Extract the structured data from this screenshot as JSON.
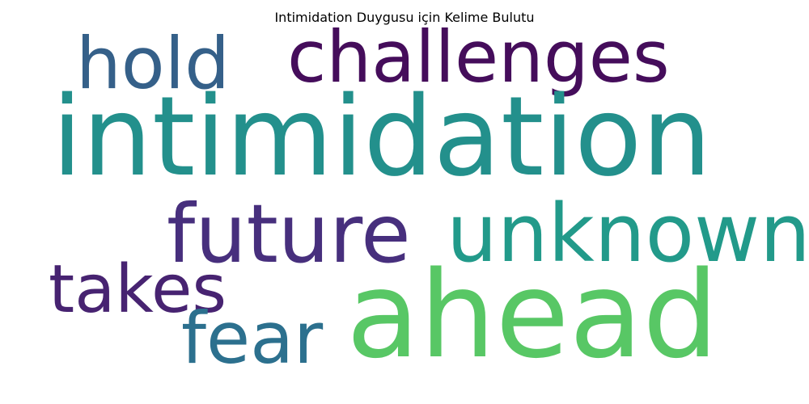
{
  "title": "Intimidation Duygusu için Kelime Bulutu",
  "words": {
    "intimidation": {
      "text": "intimidation",
      "color": "#23908c"
    },
    "ahead": {
      "text": "ahead",
      "color": "#58c765"
    },
    "unknown": {
      "text": "unknown",
      "color": "#229a8a"
    },
    "future": {
      "text": "future",
      "color": "#472f7d"
    },
    "challenges": {
      "text": "challenges",
      "color": "#450d5b"
    },
    "hold": {
      "text": "hold",
      "color": "#356089"
    },
    "takes": {
      "text": "takes",
      "color": "#472371"
    },
    "fear": {
      "text": "fear",
      "color": "#2c708e"
    }
  }
}
